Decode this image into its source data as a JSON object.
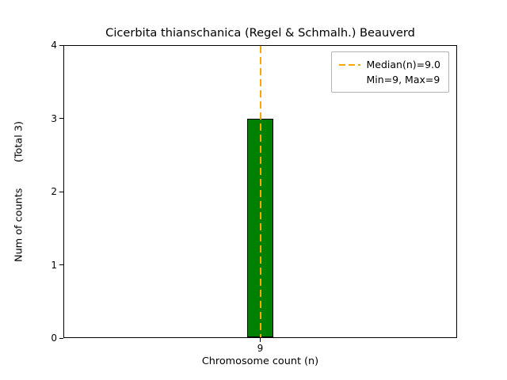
{
  "chart_data": {
    "type": "bar",
    "title": "Cicerbita thianschanica (Regel & Schmalh.) Beauverd",
    "xlabel": "Chromosome count (n)",
    "ylabel": "Num of counts        (Total 3)",
    "total_counts": 3,
    "categories": [
      "9"
    ],
    "values": [
      3
    ],
    "ylim": [
      0,
      4
    ],
    "yticks": [
      0,
      1,
      2,
      3,
      4
    ],
    "grid": false,
    "bar_color": "#008000",
    "bar_edge_color": "#000000",
    "median_line": {
      "x": 9.0,
      "color": "#FFA500",
      "style": "dashed"
    },
    "stats": {
      "median": 9.0,
      "min": 9,
      "max": 9
    },
    "legend": {
      "position": "upper right",
      "entries": [
        {
          "sample": "dashed-line",
          "label": "Median(n)=9.0"
        },
        {
          "sample": "none",
          "label": "Min=9, Max=9"
        }
      ]
    }
  }
}
